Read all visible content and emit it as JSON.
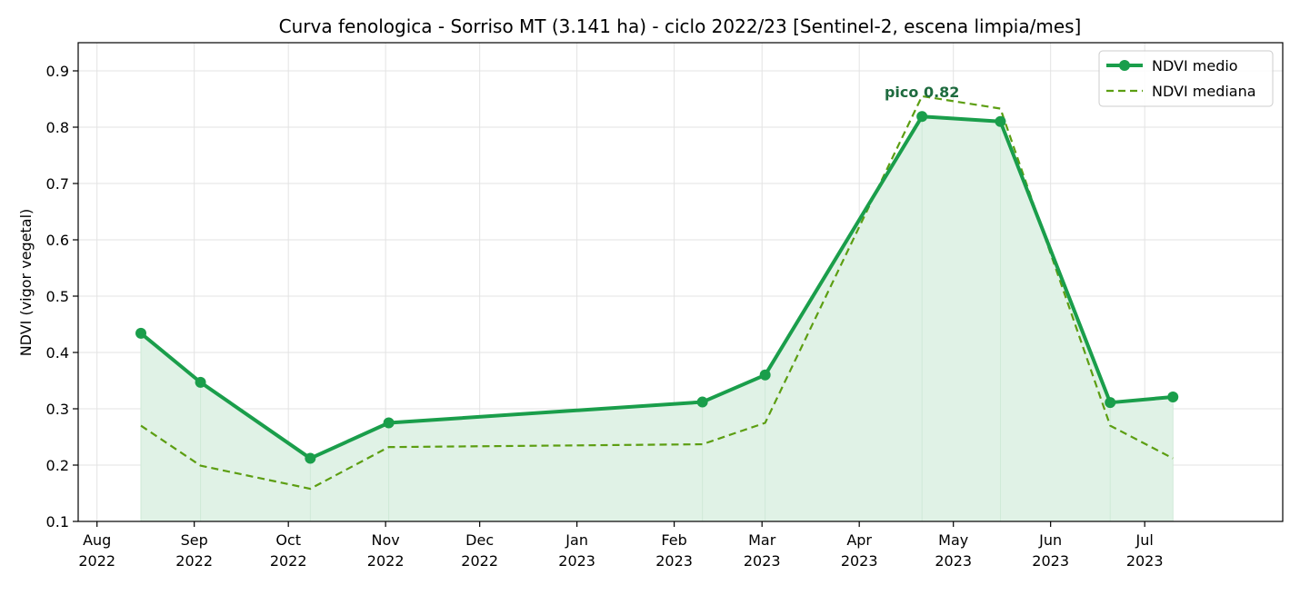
{
  "chart_data": {
    "type": "line",
    "title": "Curva fenologica - Sorriso MT (3.141 ha) - ciclo 2022/23  [Sentinel-2, escena limpia/mes]",
    "xlabel": "",
    "ylabel": "NDVI (vigor vegetal)",
    "ylim": [
      0.1,
      0.95
    ],
    "xlim": [
      "2022-07-26",
      "2023-08-14"
    ],
    "grid": true,
    "legend_position": "top-right",
    "x_ticks": [
      {
        "date": "2022-08-01",
        "line1": "Aug",
        "line2": "2022"
      },
      {
        "date": "2022-09-01",
        "line1": "Sep",
        "line2": "2022"
      },
      {
        "date": "2022-10-01",
        "line1": "Oct",
        "line2": "2022"
      },
      {
        "date": "2022-11-01",
        "line1": "Nov",
        "line2": "2022"
      },
      {
        "date": "2022-12-01",
        "line1": "Dec",
        "line2": "2022"
      },
      {
        "date": "2023-01-01",
        "line1": "Jan",
        "line2": "2023"
      },
      {
        "date": "2023-02-01",
        "line1": "Feb",
        "line2": "2023"
      },
      {
        "date": "2023-03-01",
        "line1": "Mar",
        "line2": "2023"
      },
      {
        "date": "2023-04-01",
        "line1": "Apr",
        "line2": "2023"
      },
      {
        "date": "2023-05-01",
        "line1": "May",
        "line2": "2023"
      },
      {
        "date": "2023-06-01",
        "line1": "Jun",
        "line2": "2023"
      },
      {
        "date": "2023-07-01",
        "line1": "Jul",
        "line2": "2023"
      }
    ],
    "y_ticks": [
      "0.1",
      "0.2",
      "0.3",
      "0.4",
      "0.5",
      "0.6",
      "0.7",
      "0.8",
      "0.9"
    ],
    "series": [
      {
        "name": "NDVI medio",
        "style": "solid-markers",
        "color": "#1a9e4b",
        "fill": "#e0f2e6",
        "points": [
          {
            "x": "2022-08-15",
            "y": 0.434
          },
          {
            "x": "2022-09-03",
            "y": 0.347
          },
          {
            "x": "2022-10-08",
            "y": 0.212
          },
          {
            "x": "2022-11-02",
            "y": 0.275
          },
          {
            "x": "2023-02-10",
            "y": 0.312
          },
          {
            "x": "2023-03-02",
            "y": 0.36
          },
          {
            "x": "2023-04-21",
            "y": 0.819
          },
          {
            "x": "2023-05-16",
            "y": 0.81
          },
          {
            "x": "2023-06-20",
            "y": 0.311
          },
          {
            "x": "2023-07-10",
            "y": 0.321
          }
        ]
      },
      {
        "name": "NDVI mediana",
        "style": "dashed",
        "color": "#5c9e12",
        "points": [
          {
            "x": "2022-08-15",
            "y": 0.27
          },
          {
            "x": "2022-09-03",
            "y": 0.199
          },
          {
            "x": "2022-10-08",
            "y": 0.158
          },
          {
            "x": "2022-11-02",
            "y": 0.232
          },
          {
            "x": "2023-02-10",
            "y": 0.237
          },
          {
            "x": "2023-03-02",
            "y": 0.275
          },
          {
            "x": "2023-04-21",
            "y": 0.855
          },
          {
            "x": "2023-05-16",
            "y": 0.833
          },
          {
            "x": "2023-06-20",
            "y": 0.27
          },
          {
            "x": "2023-07-10",
            "y": 0.212
          }
        ]
      }
    ],
    "annotations": [
      {
        "text": "pico 0.82",
        "x": "2023-04-21",
        "y": 0.819,
        "color": "#1e6b3f"
      }
    ]
  }
}
